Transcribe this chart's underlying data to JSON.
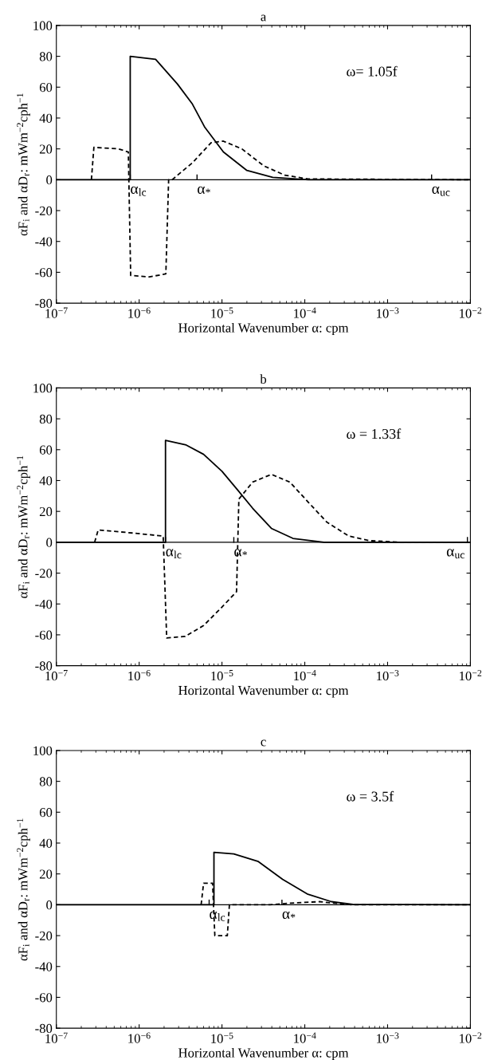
{
  "chart_data": [
    {
      "type": "line",
      "title": "a",
      "xlabel": "Horizontal Wavenumber α: cpm",
      "ylabel": "αF$_{i}$ and αD$_{r}$: mWm$^{−2}$cph$^{−1}$",
      "log": "x",
      "xlim": [
        1e-07,
        0.01
      ],
      "ylim": [
        -80,
        100
      ],
      "xticks": [
        {
          "value": 1e-07,
          "label": "10$^{−7}$"
        },
        {
          "value": 1e-06,
          "label": "10$^{−6}$"
        },
        {
          "value": 1e-05,
          "label": "10$^{−5}$"
        },
        {
          "value": 0.0001,
          "label": "10$^{−4}$"
        },
        {
          "value": 0.001,
          "label": "10$^{−3}$"
        },
        {
          "value": 0.01,
          "label": "10$^{−2}$"
        }
      ],
      "yticks": [
        -80,
        -60,
        -40,
        -20,
        0,
        20,
        40,
        60,
        80,
        100
      ],
      "grid": false,
      "legend": false,
      "marker": "none",
      "series": [
        {
          "color": "#000000",
          "line_style": "solid",
          "x": [
            1e-07,
            7.8e-07,
            7.8e-07,
            1.58e-06,
            2.9e-06,
            4.4e-06,
            6.2e-06,
            1.04e-05,
            2e-05,
            4.1e-05,
            0.00011,
            0.01
          ],
          "values": [
            0,
            0,
            80,
            78,
            62,
            49,
            34,
            18,
            6,
            1.5,
            0,
            0
          ]
        },
        {
          "color": "#000000",
          "line_style": "dashed",
          "x": [
            2.65e-07,
            2.84e-07,
            5.6e-07,
            7.4e-07,
            7.9e-07,
            1.33e-06,
            2.1e-06,
            2.27e-06,
            2.5e-06,
            4.4e-06,
            7.4e-06,
            1.04e-05,
            1.74e-05,
            3.2e-05,
            5.7e-05,
            0.00011,
            0.01
          ],
          "values": [
            0,
            21,
            20,
            18,
            -62,
            -63,
            -61,
            0,
            0,
            11,
            24,
            25,
            20,
            9,
            3,
            0.5,
            0
          ]
        }
      ],
      "ref_lines": [
        {
          "axis": "y",
          "value": 0,
          "color": "#000000"
        }
      ],
      "annotations": [
        {
          "text": "α$_{lc}$",
          "x": 7.8e-07,
          "y": 0
        },
        {
          "text": "α$_{*}$",
          "x": 5e-06,
          "y": 0
        },
        {
          "text": "α$_{uc}$",
          "x": 0.0034,
          "y": 0
        },
        "ω= 1.05f"
      ]
    },
    {
      "type": "line",
      "title": "b",
      "xlabel": "Horizontal Wavenumber α: cpm",
      "ylabel": "αF$_{i}$ and αD$_{r}$: mWm$^{−2}$cph$^{−1}$",
      "log": "x",
      "xlim": [
        1e-07,
        0.01
      ],
      "ylim": [
        -80,
        100
      ],
      "xticks": [
        {
          "value": 1e-07,
          "label": "10$^{−7}$"
        },
        {
          "value": 1e-06,
          "label": "10$^{−6}$"
        },
        {
          "value": 1e-05,
          "label": "10$^{−5}$"
        },
        {
          "value": 0.0001,
          "label": "10$^{−4}$"
        },
        {
          "value": 0.001,
          "label": "10$^{−3}$"
        },
        {
          "value": 0.01,
          "label": "10$^{−2}$"
        }
      ],
      "yticks": [
        -80,
        -60,
        -40,
        -20,
        0,
        20,
        40,
        60,
        80,
        100
      ],
      "grid": false,
      "legend": false,
      "marker": "none",
      "series": [
        {
          "color": "#000000",
          "line_style": "solid",
          "x": [
            1e-07,
            2.08e-06,
            2.08e-06,
            3.7e-06,
            6e-06,
            1e-05,
            1.54e-05,
            2.35e-05,
            3.95e-05,
            7.2e-05,
            0.00017,
            0.01
          ],
          "values": [
            0,
            0,
            66,
            63,
            57,
            46,
            34,
            22,
            9,
            2.5,
            0,
            0
          ]
        },
        {
          "color": "#000000",
          "line_style": "dashed",
          "x": [
            2.9e-07,
            3.2e-07,
            8.3e-07,
            1.95e-06,
            2.15e-06,
            3.6e-06,
            6e-06,
            1e-05,
            1.5e-05,
            1.6e-05,
            2.35e-05,
            3.95e-05,
            6.6e-05,
            0.00011,
            0.000185,
            0.00034,
            0.00061,
            0.00145,
            0.01
          ],
          "values": [
            0,
            8,
            6,
            4,
            -62,
            -61,
            -54,
            -42,
            -32,
            28,
            39,
            44,
            39,
            26,
            13,
            4,
            1,
            0,
            0
          ]
        }
      ],
      "ref_lines": [
        {
          "axis": "y",
          "value": 0,
          "color": "#000000"
        }
      ],
      "annotations": [
        {
          "text": "α$_{lc}$",
          "x": 2.08e-06,
          "y": 0
        },
        {
          "text": "α$_{*}$",
          "x": 1.39e-05,
          "y": 0
        },
        {
          "text": "α$_{uc}$",
          "x": 0.0092,
          "y": 0
        },
        "ω = 1.33f"
      ]
    },
    {
      "type": "line",
      "title": "c",
      "xlabel": "Horizontal Wavenumber α: cpm",
      "ylabel": "αF$_{i}$ and αD$_{r}$: mWm$^{−2}$cph$^{−1}$",
      "log": "x",
      "xlim": [
        1e-07,
        0.01
      ],
      "ylim": [
        -80,
        100
      ],
      "xticks": [
        {
          "value": 1e-07,
          "label": "10$^{−7}$"
        },
        {
          "value": 1e-06,
          "label": "10$^{−6}$"
        },
        {
          "value": 1e-05,
          "label": "10$^{−5}$"
        },
        {
          "value": 0.0001,
          "label": "10$^{−4}$"
        },
        {
          "value": 0.001,
          "label": "10$^{−3}$"
        },
        {
          "value": 0.01,
          "label": "10$^{−2}$"
        }
      ],
      "yticks": [
        -80,
        -60,
        -40,
        -20,
        0,
        20,
        40,
        60,
        80,
        100
      ],
      "grid": false,
      "legend": false,
      "marker": "none",
      "series": [
        {
          "color": "#000000",
          "line_style": "solid",
          "x": [
            1e-07,
            8e-06,
            8e-06,
            1.39e-05,
            2.75e-05,
            5.4e-05,
            0.000107,
            0.00021,
            0.00038,
            0.01
          ],
          "values": [
            0,
            0,
            34,
            33,
            28,
            16.5,
            7,
            2,
            0.3,
            0
          ]
        },
        {
          "color": "#000000",
          "line_style": "dashed",
          "x": [
            5.6e-06,
            6e-06,
            7.7e-06,
            8.2e-06,
            1.16e-05,
            1.23e-05,
            3.8e-05,
            6.4e-05,
            0.00015,
            0.00023,
            0.00038,
            0.01
          ],
          "values": [
            0,
            14,
            14,
            -20,
            -20,
            0,
            0,
            1,
            2,
            1,
            0,
            0
          ]
        }
      ],
      "ref_lines": [
        {
          "axis": "y",
          "value": 0,
          "color": "#000000"
        }
      ],
      "annotations": [
        {
          "text": "α$_{lc}$",
          "x": 7e-06,
          "y": 0
        },
        {
          "text": "α$_{*}$",
          "x": 5.3e-05,
          "y": 0
        },
        "ω = 3.5f"
      ]
    }
  ]
}
